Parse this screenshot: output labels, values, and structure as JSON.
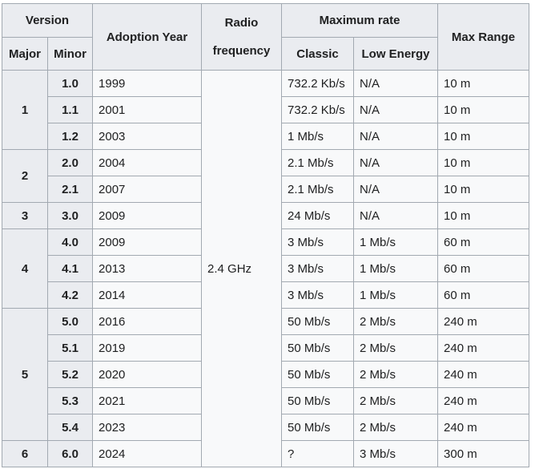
{
  "headers": {
    "version": "Version",
    "adoption_year": "Adoption Year",
    "radio_line1": "Radio",
    "radio_line2": "frequency",
    "max_rate": "Maximum rate",
    "max_range": "Max Range",
    "major": "Major",
    "minor": "Minor",
    "classic": "Classic",
    "low_energy": "Low Energy"
  },
  "radio_frequency": "2.4 GHz",
  "majors": [
    "1",
    "2",
    "3",
    "4",
    "5",
    "6"
  ],
  "rows": [
    {
      "minor": "1.0",
      "year": "1999",
      "classic": "732.2 Kb/s",
      "le": "N/A",
      "range": "10 m"
    },
    {
      "minor": "1.1",
      "year": "2001",
      "classic": "732.2 Kb/s",
      "le": "N/A",
      "range": "10 m"
    },
    {
      "minor": "1.2",
      "year": "2003",
      "classic": "1 Mb/s",
      "le": "N/A",
      "range": "10 m"
    },
    {
      "minor": "2.0",
      "year": "2004",
      "classic": "2.1 Mb/s",
      "le": "N/A",
      "range": "10 m"
    },
    {
      "minor": "2.1",
      "year": "2007",
      "classic": "2.1 Mb/s",
      "le": "N/A",
      "range": "10 m"
    },
    {
      "minor": "3.0",
      "year": "2009",
      "classic": "24 Mb/s",
      "le": "N/A",
      "range": "10 m"
    },
    {
      "minor": "4.0",
      "year": "2009",
      "classic": "3 Mb/s",
      "le": "1 Mb/s",
      "range": "60 m"
    },
    {
      "minor": "4.1",
      "year": "2013",
      "classic": "3 Mb/s",
      "le": "1 Mb/s",
      "range": "60 m"
    },
    {
      "minor": "4.2",
      "year": "2014",
      "classic": "3 Mb/s",
      "le": "1 Mb/s",
      "range": "60 m"
    },
    {
      "minor": "5.0",
      "year": "2016",
      "classic": "50 Mb/s",
      "le": "2 Mb/s",
      "range": "240 m"
    },
    {
      "minor": "5.1",
      "year": "2019",
      "classic": "50 Mb/s",
      "le": "2 Mb/s",
      "range": "240 m"
    },
    {
      "minor": "5.2",
      "year": "2020",
      "classic": "50 Mb/s",
      "le": "2 Mb/s",
      "range": "240 m"
    },
    {
      "minor": "5.3",
      "year": "2021",
      "classic": "50 Mb/s",
      "le": "2 Mb/s",
      "range": "240 m"
    },
    {
      "minor": "5.4",
      "year": "2023",
      "classic": "50 Mb/s",
      "le": "2 Mb/s",
      "range": "240 m"
    },
    {
      "minor": "6.0",
      "year": "2024",
      "classic": "?",
      "le": "3 Mb/s",
      "range": "300 m"
    }
  ]
}
